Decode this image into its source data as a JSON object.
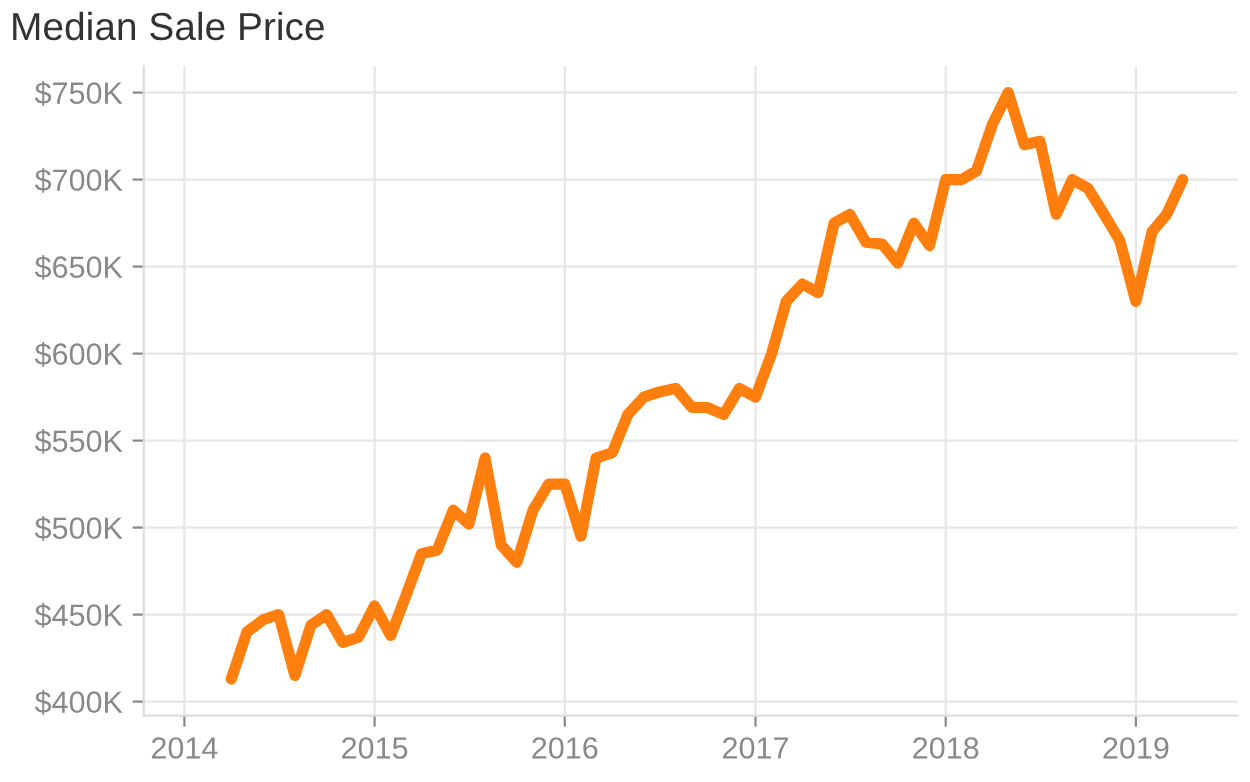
{
  "chart_data": {
    "type": "line",
    "title": "Median Sale Price",
    "x": [
      "2014-04",
      "2014-05",
      "2014-06",
      "2014-07",
      "2014-08",
      "2014-09",
      "2014-10",
      "2014-11",
      "2014-12",
      "2015-01",
      "2015-02",
      "2015-03",
      "2015-04",
      "2015-05",
      "2015-06",
      "2015-07",
      "2015-08",
      "2015-09",
      "2015-10",
      "2015-11",
      "2015-12",
      "2016-01",
      "2016-02",
      "2016-03",
      "2016-04",
      "2016-05",
      "2016-06",
      "2016-07",
      "2016-08",
      "2016-09",
      "2016-10",
      "2016-11",
      "2016-12",
      "2017-01",
      "2017-02",
      "2017-03",
      "2017-04",
      "2017-05",
      "2017-06",
      "2017-07",
      "2017-08",
      "2017-09",
      "2017-10",
      "2017-11",
      "2017-12",
      "2018-01",
      "2018-02",
      "2018-03",
      "2018-04",
      "2018-05",
      "2018-06",
      "2018-07",
      "2018-08",
      "2018-09",
      "2018-10",
      "2018-11",
      "2018-12",
      "2019-01",
      "2019-02",
      "2019-03",
      "2019-04"
    ],
    "series": [
      {
        "color": "#ff7f0e",
        "values": [
          413,
          440,
          447,
          450,
          415,
          444,
          450,
          434,
          437,
          455,
          438,
          460,
          485,
          487,
          510,
          502,
          540,
          490,
          480,
          510,
          525,
          525,
          495,
          540,
          543,
          565,
          575,
          578,
          580,
          569,
          569,
          565,
          580,
          575,
          600,
          630,
          640,
          635,
          675,
          680,
          664,
          663,
          652,
          675,
          662,
          700,
          700,
          705,
          732,
          750,
          720,
          722,
          680,
          700,
          695,
          680,
          665,
          630,
          670,
          680,
          700
        ]
      }
    ],
    "xlim": [
      "2013-10-15",
      "2019-07-15"
    ],
    "xticks": [
      {
        "value": "2014-01-01",
        "label": "2014"
      },
      {
        "value": "2015-01-01",
        "label": "2015"
      },
      {
        "value": "2016-01-01",
        "label": "2016"
      },
      {
        "value": "2017-01-01",
        "label": "2017"
      },
      {
        "value": "2018-01-01",
        "label": "2018"
      },
      {
        "value": "2019-01-01",
        "label": "2019"
      }
    ],
    "ylim": [
      392,
      765
    ],
    "yticks": [
      {
        "value": 400,
        "label": "$400K"
      },
      {
        "value": 450,
        "label": "$450K"
      },
      {
        "value": 500,
        "label": "$500K"
      },
      {
        "value": 550,
        "label": "$550K"
      },
      {
        "value": 600,
        "label": "$600K"
      },
      {
        "value": 650,
        "label": "$650K"
      },
      {
        "value": 700,
        "label": "$700K"
      },
      {
        "value": 750,
        "label": "$750K"
      }
    ],
    "grid": true,
    "legend": false
  }
}
